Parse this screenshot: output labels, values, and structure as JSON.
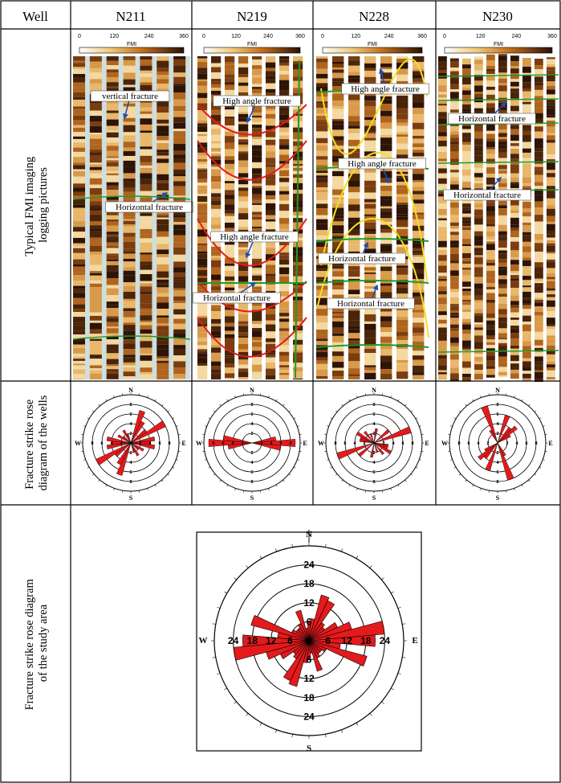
{
  "table": {
    "header": {
      "well": "Well",
      "wells": [
        "N211",
        "N219",
        "N228",
        "N230"
      ]
    },
    "rows": [
      {
        "label_lines": [
          "Typical FMI imaging",
          "logging pictures"
        ]
      },
      {
        "label_lines": [
          "Fracture strike rose",
          "diagram of the wells"
        ]
      },
      {
        "label_lines": [
          "Fracture strike rose diagram",
          "of the study area"
        ]
      }
    ]
  },
  "fmi": {
    "scale_ticks": [
      "0",
      "120",
      "240",
      "360"
    ],
    "scale_title": "FMI",
    "annotations": [
      [
        "vertical fracture",
        "Horizontal fracture"
      ],
      [
        "High angle fracture",
        "High angle fracture",
        "Horizontal fracture"
      ],
      [
        "High angle fracture",
        "High angle fracture",
        "Horizontal fracture",
        "Horizontal fracture"
      ],
      [
        "Horizontal fracture",
        "Horizontal fracture"
      ]
    ]
  },
  "colors": {
    "rose_fill": "#e41a1c",
    "high_angle_trace": "#e01b1b",
    "yellow_trace": "#f4e01e",
    "horizontal_trace": "#1f9a2a",
    "arrow": "#1f4fb0",
    "fmi_dark": "#4a2408",
    "fmi_mid": "#b0651e",
    "fmi_light": "#f3d8a2",
    "gap": "#cfdede"
  },
  "chart_data": [
    {
      "type": "rose",
      "well": "N211",
      "bin_width_deg": 10,
      "cardinal": [
        "N",
        "E",
        "S",
        "W"
      ],
      "rings": [
        "2",
        "4",
        "6",
        "8"
      ],
      "r_max": 10,
      "petals": [
        {
          "angle": 20,
          "value": 7
        },
        {
          "angle": 30,
          "value": 5
        },
        {
          "angle": 50,
          "value": 4
        },
        {
          "angle": 60,
          "value": 8
        },
        {
          "angle": 80,
          "value": 5
        },
        {
          "angle": 90,
          "value": 4
        },
        {
          "angle": 100,
          "value": 5
        },
        {
          "angle": 120,
          "value": 3
        },
        {
          "angle": 130,
          "value": 2
        },
        {
          "angle": 150,
          "value": 3
        },
        {
          "angle": 160,
          "value": 2
        }
      ]
    },
    {
      "type": "rose",
      "well": "N219",
      "bin_width_deg": 10,
      "cardinal": [
        "N",
        "E",
        "S",
        "W"
      ],
      "rings": [
        "2",
        "4",
        "6",
        "8"
      ],
      "r_max": 10,
      "petals": [
        {
          "angle": 80,
          "value": 5
        },
        {
          "angle": 90,
          "value": 9
        },
        {
          "angle": 100,
          "value": 6
        }
      ]
    },
    {
      "type": "rose",
      "well": "N228",
      "bin_width_deg": 10,
      "cardinal": [
        "N",
        "E",
        "S",
        "W"
      ],
      "rings": [
        "2",
        "4",
        "6",
        "8"
      ],
      "r_max": 10,
      "petals": [
        {
          "angle": 10,
          "value": 3
        },
        {
          "angle": 50,
          "value": 4
        },
        {
          "angle": 70,
          "value": 8
        },
        {
          "angle": 100,
          "value": 3
        },
        {
          "angle": 110,
          "value": 3
        },
        {
          "angle": 120,
          "value": 4
        },
        {
          "angle": 140,
          "value": 3
        },
        {
          "angle": 160,
          "value": 2
        }
      ]
    },
    {
      "type": "rose",
      "well": "N230",
      "bin_width_deg": 10,
      "cardinal": [
        "N",
        "E",
        "S",
        "W"
      ],
      "rings": [
        "2",
        "4",
        "6",
        "8"
      ],
      "r_max": 10,
      "petals": [
        {
          "angle": 20,
          "value": 6
        },
        {
          "angle": 40,
          "value": 4
        },
        {
          "angle": 50,
          "value": 5
        },
        {
          "angle": 60,
          "value": 3
        },
        {
          "angle": 150,
          "value": 3
        },
        {
          "angle": 160,
          "value": 8
        }
      ]
    },
    {
      "type": "rose",
      "well": "study area",
      "bin_width_deg": 10,
      "cardinal": [
        "N",
        "E",
        "S",
        "W"
      ],
      "rings": [
        "6",
        "12",
        "18",
        "24"
      ],
      "r_max": 30,
      "petals": [
        {
          "angle": 0,
          "value": 6
        },
        {
          "angle": 10,
          "value": 7
        },
        {
          "angle": 20,
          "value": 15
        },
        {
          "angle": 30,
          "value": 14
        },
        {
          "angle": 40,
          "value": 7
        },
        {
          "angle": 50,
          "value": 6
        },
        {
          "angle": 60,
          "value": 10
        },
        {
          "angle": 70,
          "value": 14
        },
        {
          "angle": 80,
          "value": 24
        },
        {
          "angle": 90,
          "value": 21
        },
        {
          "angle": 100,
          "value": 10
        },
        {
          "angle": 110,
          "value": 19
        },
        {
          "angle": 120,
          "value": 6
        },
        {
          "angle": 130,
          "value": 5
        },
        {
          "angle": 140,
          "value": 5
        },
        {
          "angle": 150,
          "value": 6
        },
        {
          "angle": 160,
          "value": 10
        },
        {
          "angle": 170,
          "value": 4
        }
      ]
    }
  ]
}
